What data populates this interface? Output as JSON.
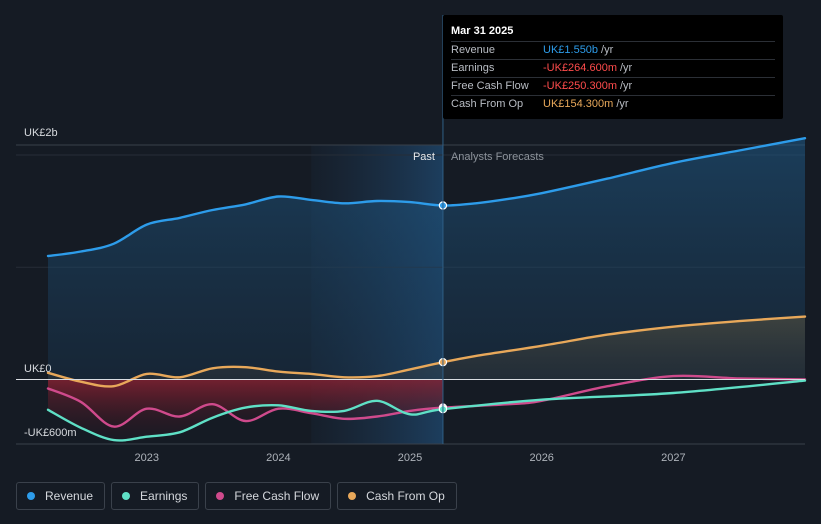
{
  "chart_data": {
    "type": "line",
    "y_axis": {
      "top_label": "UK£2b",
      "zero_label": "UK£0",
      "bottom_label": "-UK£600m",
      "ylim": [
        -600,
        2000
      ],
      "unit": "UK£m"
    },
    "x_ticks": [
      "2023",
      "2024",
      "2025",
      "2026",
      "2027"
    ],
    "x_range": [
      2022.25,
      2028.0
    ],
    "divider_x": 2025.25,
    "past_region_start": 2024.25,
    "past_label": "Past",
    "forecast_label": "Analysts Forecasts",
    "series": [
      {
        "name": "Revenue",
        "key": "revenue",
        "color": "#2d9cea",
        "x": [
          2022.25,
          2022.5,
          2022.75,
          2023.0,
          2023.25,
          2023.5,
          2023.75,
          2024.0,
          2024.25,
          2024.5,
          2024.75,
          2025.0,
          2025.25,
          2025.5,
          2025.75,
          2026.0,
          2026.5,
          2027.0,
          2027.5,
          2028.0
        ],
        "values": [
          1100,
          1140,
          1210,
          1380,
          1440,
          1510,
          1560,
          1630,
          1600,
          1570,
          1590,
          1580,
          1550,
          1570,
          1610,
          1660,
          1790,
          1930,
          2040,
          2150
        ]
      },
      {
        "name": "Earnings",
        "key": "earnings",
        "color": "#5fe0c6",
        "x": [
          2022.25,
          2022.5,
          2022.75,
          2023.0,
          2023.25,
          2023.5,
          2023.75,
          2024.0,
          2024.25,
          2024.5,
          2024.75,
          2025.0,
          2025.25,
          2026.0,
          2027.0,
          2028.0
        ],
        "values": [
          -270,
          -430,
          -540,
          -510,
          -470,
          -340,
          -250,
          -230,
          -280,
          -280,
          -190,
          -310,
          -264.6,
          -180,
          -120,
          -10
        ]
      },
      {
        "name": "Free Cash Flow",
        "key": "fcf",
        "color": "#cf4a8c",
        "x": [
          2022.25,
          2022.5,
          2022.75,
          2023.0,
          2023.25,
          2023.5,
          2023.75,
          2024.0,
          2024.25,
          2024.5,
          2024.75,
          2025.0,
          2025.25,
          2025.75,
          2026.0,
          2026.5,
          2027.0,
          2027.5,
          2028.0
        ],
        "values": [
          -80,
          -200,
          -420,
          -260,
          -330,
          -220,
          -370,
          -260,
          -300,
          -350,
          -330,
          -280,
          -250.3,
          -220,
          -190,
          -60,
          30,
          10,
          0
        ]
      },
      {
        "name": "Cash From Op",
        "key": "cfo",
        "color": "#e8a85a",
        "x": [
          2022.25,
          2022.5,
          2022.75,
          2023.0,
          2023.25,
          2023.5,
          2023.75,
          2024.0,
          2024.25,
          2024.5,
          2024.75,
          2025.0,
          2025.25,
          2025.5,
          2026.0,
          2026.5,
          2027.0,
          2027.5,
          2028.0
        ],
        "values": [
          60,
          -20,
          -60,
          50,
          20,
          100,
          110,
          70,
          50,
          20,
          30,
          90,
          154.3,
          210,
          300,
          400,
          470,
          520,
          560
        ]
      }
    ]
  },
  "tooltip": {
    "date": "Mar 31 2025",
    "rows": [
      {
        "label": "Revenue",
        "value": "UK£1.550b",
        "unit": "/yr",
        "color": "#2d9cea"
      },
      {
        "label": "Earnings",
        "value": "-UK£264.600m",
        "unit": "/yr",
        "color": "#ff4c4c"
      },
      {
        "label": "Free Cash Flow",
        "value": "-UK£250.300m",
        "unit": "/yr",
        "color": "#ff4c4c"
      },
      {
        "label": "Cash From Op",
        "value": "UK£154.300m",
        "unit": "/yr",
        "color": "#e8a85a"
      }
    ]
  },
  "legend": [
    {
      "label": "Revenue",
      "color": "#2d9cea"
    },
    {
      "label": "Earnings",
      "color": "#5fe0c6"
    },
    {
      "label": "Free Cash Flow",
      "color": "#cf4a8c"
    },
    {
      "label": "Cash From Op",
      "color": "#e8a85a"
    }
  ]
}
